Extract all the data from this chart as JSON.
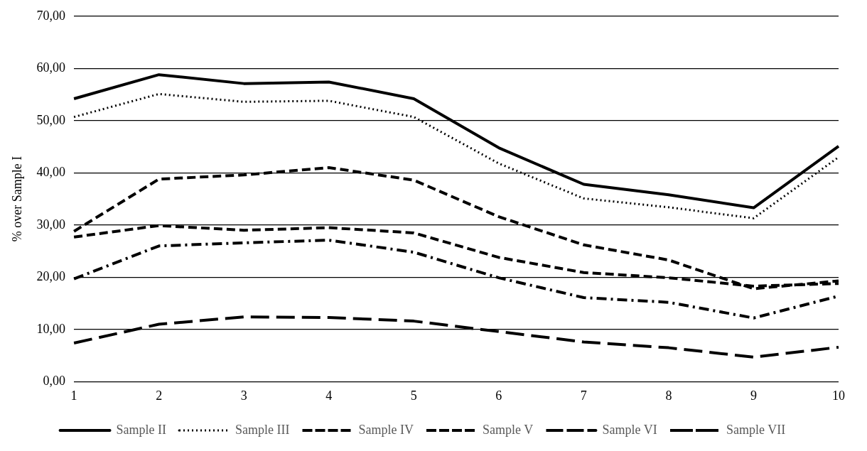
{
  "chart_data": {
    "type": "line",
    "ylabel": "% over Sample I",
    "categories": [
      "1",
      "2",
      "3",
      "4",
      "5",
      "6",
      "7",
      "8",
      "9",
      "10"
    ],
    "ylim": [
      0,
      70
    ],
    "yticks": [
      {
        "value": 0,
        "label": "0,00"
      },
      {
        "value": 10,
        "label": "10,00"
      },
      {
        "value": 20,
        "label": "20,00"
      },
      {
        "value": 30,
        "label": "30,00"
      },
      {
        "value": 40,
        "label": "40,00"
      },
      {
        "value": 50,
        "label": "50,00"
      },
      {
        "value": 60,
        "label": "60,00"
      },
      {
        "value": 70,
        "label": "70,00"
      }
    ],
    "grid": "y",
    "legend": "bottom",
    "marker": "none",
    "series": [
      {
        "name": "Sample II",
        "color": "#000000",
        "line_style": "solid",
        "values": [
          54.2,
          58.8,
          57.1,
          57.4,
          54.2,
          44.8,
          37.8,
          35.8,
          33.3,
          45.1
        ]
      },
      {
        "name": "Sample III",
        "color": "#000000",
        "line_style": "dotted",
        "values": [
          50.7,
          55.1,
          53.6,
          53.8,
          50.7,
          41.8,
          35.1,
          33.4,
          31.3,
          43.0
        ]
      },
      {
        "name": "Sample IV",
        "color": "#000000",
        "line_style": "dashed",
        "values": [
          28.8,
          38.8,
          39.6,
          41.0,
          38.6,
          31.6,
          26.2,
          23.3,
          17.8,
          19.3
        ]
      },
      {
        "name": "Sample V",
        "color": "#000000",
        "line_style": "dashed",
        "values": [
          27.7,
          29.9,
          29.0,
          29.5,
          28.5,
          23.8,
          20.9,
          19.9,
          18.3,
          18.8
        ]
      },
      {
        "name": "Sample VI",
        "color": "#000000",
        "line_style": "dashdot",
        "values": [
          19.7,
          26.0,
          26.6,
          27.1,
          24.8,
          19.9,
          16.1,
          15.2,
          12.2,
          16.4
        ]
      },
      {
        "name": "Sample VII",
        "color": "#000000",
        "line_style": "longdash",
        "values": [
          7.4,
          11.0,
          12.4,
          12.3,
          11.6,
          9.6,
          7.6,
          6.5,
          4.7,
          6.6
        ]
      }
    ]
  }
}
